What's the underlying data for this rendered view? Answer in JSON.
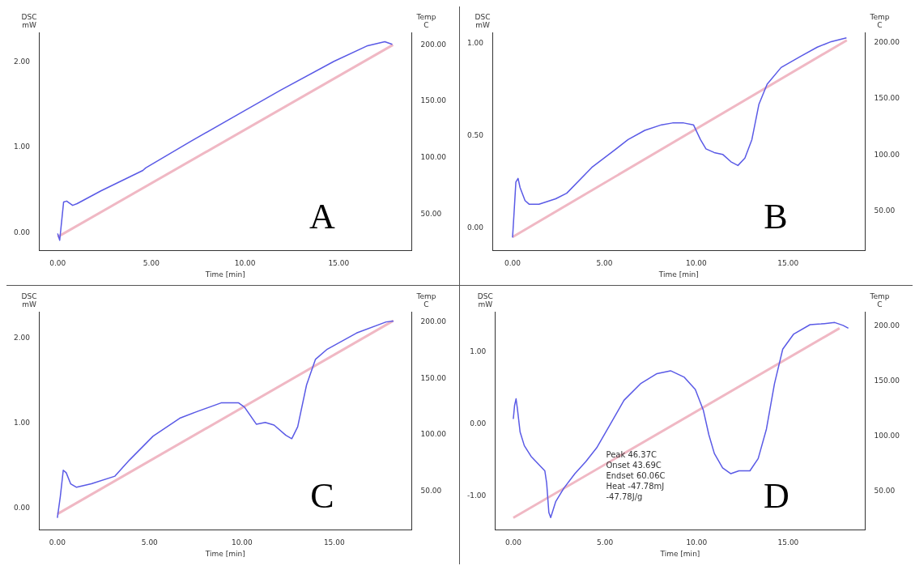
{
  "chart_data": [
    {
      "type": "line",
      "title": "A",
      "xlabel": "Time [min]",
      "ylabel": "DSC mW",
      "y2label": "Temp C",
      "xlim": [
        -1,
        18.9
      ],
      "xticks": [
        {
          "value": 0,
          "label": "0.00"
        },
        {
          "value": 5,
          "label": "5.00"
        },
        {
          "value": 10,
          "label": "10.00"
        },
        {
          "value": 15,
          "label": "15.00"
        }
      ],
      "ylim": [
        -0.21,
        2.35
      ],
      "yticks": [
        {
          "value": 0,
          "label": "0.00"
        },
        {
          "value": 1,
          "label": "1.00"
        },
        {
          "value": 2,
          "label": "2.00"
        }
      ],
      "y2lim": [
        18,
        211
      ],
      "y2ticks": [
        {
          "value": 50,
          "label": "50.00"
        },
        {
          "value": 100,
          "label": "100.00"
        },
        {
          "value": 150,
          "label": "150.00"
        },
        {
          "value": 200,
          "label": "200.00"
        }
      ],
      "grid": false,
      "legend": false,
      "line_style": "solid",
      "series": [
        {
          "color": "#5a5ae6",
          "x": [
            0,
            0.11,
            0.24,
            0.32,
            0.48,
            0.8,
            1.04,
            2.31,
            4.55,
            4.7,
            7.1,
            9.49,
            11.88,
            14.75,
            16.5,
            17.46,
            17.86
          ],
          "values": [
            -0.01,
            -0.09,
            0.19,
            0.36,
            0.37,
            0.32,
            0.34,
            0.49,
            0.73,
            0.76,
            1.07,
            1.37,
            1.67,
            2.01,
            2.19,
            2.24,
            2.21
          ]
        },
        {
          "color": "#f0b8c4",
          "axis": "y2",
          "x": [
            0,
            17.9
          ],
          "values": [
            30,
            200
          ]
        }
      ]
    },
    {
      "type": "line",
      "title": "B",
      "xlabel": "Time [min]",
      "ylabel": "DSC mW",
      "y2label": "Temp C",
      "xlim": [
        -1.1,
        19.2
      ],
      "xticks": [
        {
          "value": 0,
          "label": "0.00"
        },
        {
          "value": 5,
          "label": "5.00"
        },
        {
          "value": 10,
          "label": "10.00"
        },
        {
          "value": 15,
          "label": "15.00"
        }
      ],
      "ylim": [
        -0.12,
        1.06
      ],
      "yticks": [
        {
          "value": 0,
          "label": "0.00"
        },
        {
          "value": 0.5,
          "label": "0.50"
        },
        {
          "value": 1,
          "label": "1.00"
        }
      ],
      "y2lim": [
        15,
        209
      ],
      "y2ticks": [
        {
          "value": 50,
          "label": "50.00"
        },
        {
          "value": 100,
          "label": "100.00"
        },
        {
          "value": 150,
          "label": "150.00"
        },
        {
          "value": 200,
          "label": "200.00"
        }
      ],
      "grid": false,
      "legend": false,
      "line_style": "solid",
      "series": [
        {
          "color": "#5a5ae6",
          "x": [
            0,
            0.08,
            0.18,
            0.3,
            0.41,
            0.68,
            0.91,
            1.44,
            2.35,
            2.95,
            4.32,
            5.38,
            6.29,
            7.2,
            8.11,
            8.71,
            9.32,
            9.85,
            10.23,
            10.53,
            10.98,
            11.44,
            11.89,
            12.27,
            12.65,
            13.03,
            13.41,
            13.86,
            14.62,
            15.68,
            16.59,
            17.35,
            18.18
          ],
          "values": [
            -0.05,
            0.08,
            0.25,
            0.27,
            0.22,
            0.15,
            0.13,
            0.13,
            0.16,
            0.19,
            0.33,
            0.41,
            0.48,
            0.53,
            0.56,
            0.57,
            0.57,
            0.56,
            0.48,
            0.43,
            0.41,
            0.4,
            0.36,
            0.34,
            0.38,
            0.48,
            0.67,
            0.78,
            0.87,
            0.93,
            0.98,
            1.01,
            1.03
          ]
        },
        {
          "color": "#f0b8c4",
          "axis": "y2",
          "x": [
            0,
            18.2
          ],
          "values": [
            27,
            202
          ]
        }
      ]
    },
    {
      "type": "line",
      "title": "C",
      "xlabel": "Time [min]",
      "ylabel": "DSC mW",
      "y2label": "Temp C",
      "xlim": [
        -1,
        19.2
      ],
      "xticks": [
        {
          "value": 0,
          "label": "0.00"
        },
        {
          "value": 5,
          "label": "5.00"
        },
        {
          "value": 10,
          "label": "10.00"
        },
        {
          "value": 15,
          "label": "15.00"
        }
      ],
      "ylim": [
        -0.25,
        2.31
      ],
      "yticks": [
        {
          "value": 0,
          "label": "0.00"
        },
        {
          "value": 1,
          "label": "1.00"
        },
        {
          "value": 2,
          "label": "2.00"
        }
      ],
      "y2lim": [
        16,
        209
      ],
      "y2ticks": [
        {
          "value": 50,
          "label": "50.00"
        },
        {
          "value": 100,
          "label": "100.00"
        },
        {
          "value": 150,
          "label": "150.00"
        },
        {
          "value": 200,
          "label": "200.00"
        }
      ],
      "grid": false,
      "legend": false,
      "line_style": "solid",
      "series": [
        {
          "color": "#5a5ae6",
          "x": [
            0,
            0.16,
            0.32,
            0.48,
            0.72,
            1.04,
            1.84,
            3.12,
            3.91,
            5.19,
            6.63,
            7.59,
            8.87,
            9.82,
            10.14,
            10.78,
            11.26,
            11.74,
            12.38,
            12.7,
            13.02,
            13.5,
            13.98,
            14.62,
            16.21,
            17.81,
            18.21
          ],
          "values": [
            -0.11,
            0.14,
            0.45,
            0.42,
            0.29,
            0.25,
            0.29,
            0.38,
            0.57,
            0.85,
            1.06,
            1.14,
            1.24,
            1.24,
            1.19,
            0.99,
            1.01,
            0.98,
            0.86,
            0.82,
            0.96,
            1.45,
            1.75,
            1.87,
            2.06,
            2.19,
            2.2
          ]
        },
        {
          "color": "#f0b8c4",
          "axis": "y2",
          "x": [
            0,
            18.2
          ],
          "values": [
            30,
            201
          ]
        }
      ]
    },
    {
      "type": "line",
      "title": "D",
      "xlabel": "Time [min]",
      "ylabel": "DSC mW",
      "y2label": "Temp C",
      "xlim": [
        -1,
        19.2
      ],
      "xticks": [
        {
          "value": 0,
          "label": "0.00"
        },
        {
          "value": 5,
          "label": "5.00"
        },
        {
          "value": 10,
          "label": "10.00"
        },
        {
          "value": 15,
          "label": "15.00"
        }
      ],
      "ylim": [
        -1.47,
        1.56
      ],
      "yticks": [
        {
          "value": -1,
          "label": "-1.00"
        },
        {
          "value": 0,
          "label": "0.00"
        },
        {
          "value": 1,
          "label": "1.00"
        }
      ],
      "y2lim": [
        15,
        213
      ],
      "y2ticks": [
        {
          "value": 50,
          "label": "50.00"
        },
        {
          "value": 100,
          "label": "100.00"
        },
        {
          "value": 150,
          "label": "150.00"
        },
        {
          "value": 200,
          "label": "200.00"
        }
      ],
      "grid": false,
      "legend": false,
      "line_style": "solid",
      "annotations": [
        "Peak 46.37C",
        "Onset 43.69C",
        "Endset 60.06C",
        "Heat -47.78mJ",
        "-47.78J/g"
      ],
      "series": [
        {
          "color": "#5a5ae6",
          "x": [
            0,
            0.07,
            0.15,
            0.22,
            0.37,
            0.6,
            0.97,
            1.72,
            1.82,
            1.94,
            2.04,
            2.31,
            2.76,
            3.36,
            3.96,
            4.55,
            5.3,
            6.04,
            6.94,
            7.84,
            8.58,
            9.33,
            9.93,
            10.37,
            10.67,
            10.97,
            11.42,
            11.87,
            12.31,
            12.91,
            13.36,
            13.81,
            14.25,
            14.7,
            15.3,
            16.19,
            16.79,
            17.54,
            17.99,
            18.28
          ],
          "values": [
            0.07,
            0.26,
            0.35,
            0.22,
            -0.11,
            -0.3,
            -0.45,
            -0.65,
            -0.82,
            -1.23,
            -1.3,
            -1.08,
            -0.89,
            -0.69,
            -0.52,
            -0.33,
            0,
            0.33,
            0.56,
            0.7,
            0.74,
            0.65,
            0.48,
            0.19,
            -0.15,
            -0.41,
            -0.61,
            -0.69,
            -0.65,
            -0.65,
            -0.48,
            -0.07,
            0.56,
            1.04,
            1.25,
            1.38,
            1.39,
            1.41,
            1.37,
            1.33
          ]
        },
        {
          "color": "#f0b8c4",
          "axis": "y2",
          "x": [
            0,
            17.8
          ],
          "values": [
            26,
            198
          ]
        }
      ]
    }
  ]
}
